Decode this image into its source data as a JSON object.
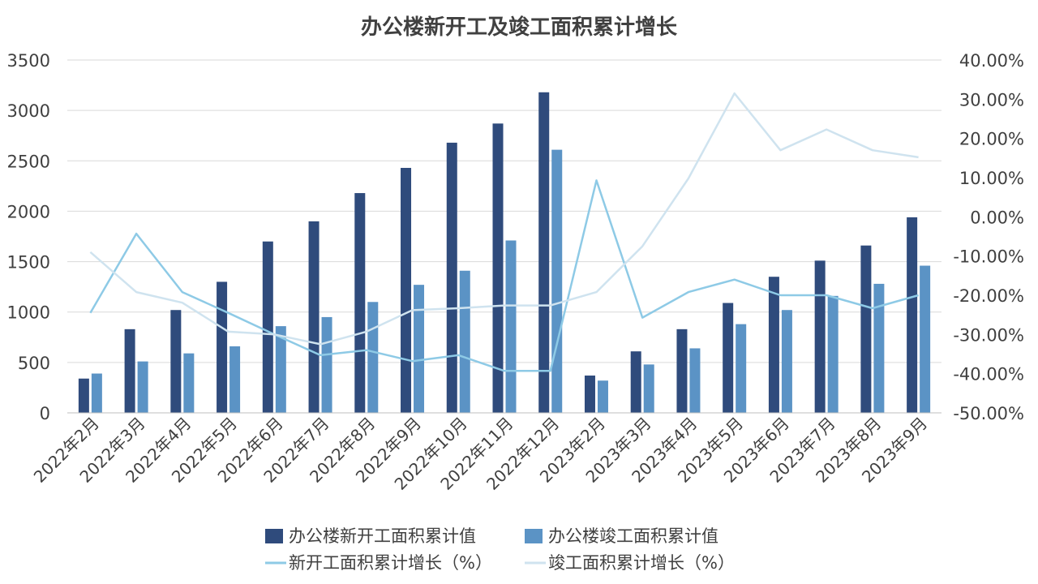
{
  "chart_data": {
    "type": "bar",
    "title": "办公楼新开工及竣工面积累计增长",
    "categories": [
      "2022年2月",
      "2022年3月",
      "2022年4月",
      "2022年5月",
      "2022年6月",
      "2022年7月",
      "2022年8月",
      "2022年9月",
      "2022年10月",
      "2022年11月",
      "2022年12月",
      "2023年2月",
      "2023年3月",
      "2023年4月",
      "2023年5月",
      "2023年6月",
      "2023年7月",
      "2023年8月",
      "2023年9月"
    ],
    "y_left": {
      "ylim": [
        0,
        3500
      ],
      "ticks": [
        "0",
        "500",
        "1000",
        "1500",
        "2000",
        "2500",
        "3000",
        "3500"
      ]
    },
    "y_right": {
      "ylim": [
        -50,
        40
      ],
      "ticks": [
        "-50.00%",
        "-40.00%",
        "-30.00%",
        "-20.00%",
        "-10.00%",
        "0.00%",
        "10.00%",
        "20.00%",
        "30.00%",
        "40.00%"
      ]
    },
    "grid": true,
    "legend_position": "bottom",
    "series": [
      {
        "name": "办公楼新开工面积累计值",
        "type": "bar",
        "axis": "left",
        "color": "#2f4b7c",
        "values": [
          340,
          830,
          1020,
          1300,
          1700,
          1900,
          2180,
          2430,
          2680,
          2870,
          3180,
          370,
          610,
          830,
          1090,
          1350,
          1510,
          1660,
          1940
        ]
      },
      {
        "name": "办公楼竣工面积累计值",
        "type": "bar",
        "axis": "left",
        "color": "#5b93c5",
        "values": [
          390,
          510,
          590,
          660,
          860,
          950,
          1100,
          1270,
          1410,
          1710,
          2610,
          320,
          480,
          640,
          880,
          1020,
          1160,
          1280,
          1460
        ]
      },
      {
        "name": "新开工面积累计增长（%）",
        "type": "line",
        "axis": "right",
        "color": "#8ecae6",
        "values": [
          -24.5,
          -4.3,
          -19.2,
          -24.5,
          -30.0,
          -35.3,
          -34.0,
          -36.8,
          -35.3,
          -39.3,
          -39.3,
          9.3,
          -25.7,
          -19.2,
          -16.0,
          -20.0,
          -20.0,
          -23.3,
          -20.0
        ]
      },
      {
        "name": "竣工面积累计增长（%）",
        "type": "line",
        "axis": "right",
        "color": "#cfe3ef",
        "values": [
          -9.0,
          -19.2,
          -21.9,
          -29.3,
          -30.0,
          -32.5,
          -29.3,
          -23.8,
          -23.3,
          -22.6,
          -22.6,
          -19.2,
          -7.5,
          9.8,
          31.5,
          17.0,
          22.3,
          17.0,
          15.2
        ]
      }
    ]
  }
}
